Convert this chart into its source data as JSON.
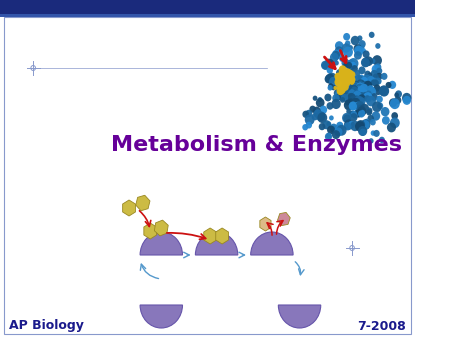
{
  "title": "Metabolism & Enzymes",
  "title_color": "#660099",
  "title_fontsize": 16,
  "footer_left": "AP Biology",
  "footer_right": "7-2008",
  "footer_color": "#1a1a8c",
  "footer_fontsize": 9,
  "bg_color": "#ffffff",
  "header_bar_color": "#1a2a7c",
  "border_color": "#8899cc",
  "crosshair_color": "#8899cc",
  "enzyme_purple": "#8877bb",
  "enzyme_edge": "#6655aa",
  "substrate_gold": "#ccbb44",
  "product_peach": "#ddaa88",
  "product_pink": "#cc8899",
  "arrow_red": "#cc1111",
  "arrow_blue": "#5599cc"
}
